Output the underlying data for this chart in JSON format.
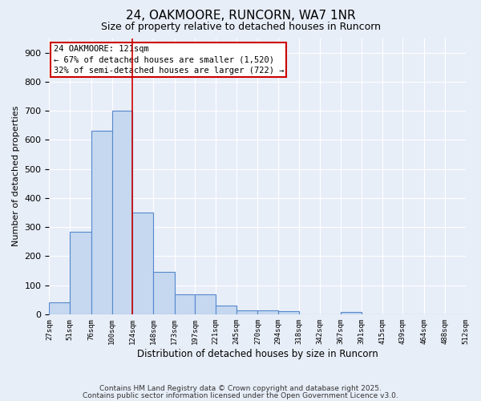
{
  "title": "24, OAKMOORE, RUNCORN, WA7 1NR",
  "subtitle": "Size of property relative to detached houses in Runcorn",
  "xlabel": "Distribution of detached houses by size in Runcorn",
  "ylabel": "Number of detached properties",
  "bar_edges": [
    27,
    51,
    76,
    100,
    124,
    148,
    173,
    197,
    221,
    245,
    270,
    294,
    318,
    342,
    367,
    391,
    415,
    439,
    464,
    488,
    512
  ],
  "bar_heights": [
    40,
    285,
    630,
    700,
    350,
    145,
    68,
    68,
    30,
    13,
    12,
    10,
    0,
    0,
    8,
    0,
    0,
    0,
    0,
    0
  ],
  "bar_color": "#c5d8f0",
  "bar_edge_color": "#5588cc",
  "bar_linewidth": 0.8,
  "vline_x": 124,
  "vline_color": "#cc0000",
  "vline_linewidth": 1.2,
  "annotation_line1": "24 OAKMOORE: 121sqm",
  "annotation_line2": "← 67% of detached houses are smaller (1,520)",
  "annotation_line3": "32% of semi-detached houses are larger (722) →",
  "annotation_box_color": "#ffffff",
  "annotation_box_edge": "#cc0000",
  "annotation_fontsize": 7.5,
  "ylim": [
    0,
    950
  ],
  "yticks": [
    0,
    100,
    200,
    300,
    400,
    500,
    600,
    700,
    800,
    900
  ],
  "background_color": "#e8eef8",
  "plot_background": "#e8eef8",
  "grid_color": "#ffffff",
  "title_fontsize": 11,
  "subtitle_fontsize": 9,
  "footer_line1": "Contains HM Land Registry data © Crown copyright and database right 2025.",
  "footer_line2": "Contains public sector information licensed under the Open Government Licence v3.0.",
  "footer_fontsize": 6.5
}
